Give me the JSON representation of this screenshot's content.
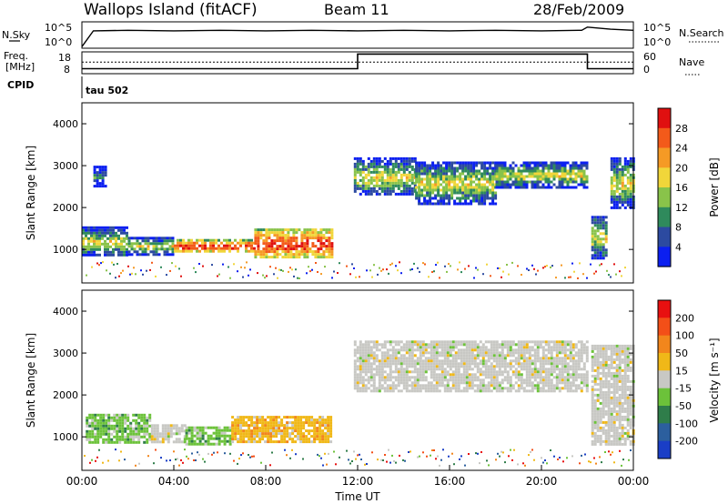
{
  "header": {
    "station": "Wallops Island (fitACF)",
    "beam": "Beam 11",
    "date": "28/Feb/2009"
  },
  "top_panel": {
    "left_label": "N.Sky",
    "right_label": "N.Search",
    "left_ticks": [
      "10^5",
      "10^0"
    ],
    "right_ticks": [
      "10^5",
      "10^0"
    ]
  },
  "freq_panel": {
    "left_label_1": "Freq.",
    "left_label_2": "[MHz]",
    "right_label": "Nave",
    "left_ticks": [
      "18",
      "8"
    ],
    "right_ticks": [
      "60",
      "0"
    ]
  },
  "cpid_panel": {
    "label": "CPID",
    "program": "tau 502"
  },
  "chart_data": [
    {
      "type": "line",
      "title": "N.Sky / N.Search",
      "xlim": [
        "00:00",
        "24:00"
      ],
      "ylim_log10": [
        0,
        5
      ],
      "series": [
        {
          "name": "N.Sky",
          "style": "solid",
          "x": [
            "00:00",
            "00:30",
            "02:00",
            "04:00",
            "06:00",
            "08:00",
            "10:00",
            "12:00",
            "14:00",
            "16:00",
            "18:00",
            "20:00",
            "21:45",
            "22:00",
            "23:00",
            "24:00"
          ],
          "y_log10": [
            0.3,
            3.3,
            3.4,
            3.3,
            3.4,
            3.3,
            3.4,
            3.3,
            3.4,
            3.3,
            3.4,
            3.3,
            3.4,
            4.0,
            3.6,
            3.4
          ]
        }
      ]
    },
    {
      "type": "line",
      "title": "Freq. / Nave",
      "xlim": [
        "00:00",
        "24:00"
      ],
      "ylim": [
        8,
        18
      ],
      "series": [
        {
          "name": "Freq.",
          "style": "solid",
          "x": [
            "00:00",
            "12:00",
            "12:00",
            "22:00",
            "22:00",
            "24:00"
          ],
          "y": [
            10.3,
            10.3,
            17,
            17,
            10.3,
            10.3
          ]
        },
        {
          "name": "Nave",
          "style": "dotted",
          "x": [
            "00:00",
            "24:00"
          ],
          "y": [
            13.3,
            13.3
          ]
        }
      ]
    },
    {
      "type": "heatmap",
      "title": "Power",
      "xlabel": "",
      "ylabel": "Slant Range [km]",
      "xlim": [
        "00:00",
        "24:00"
      ],
      "ylim": [
        200,
        4500
      ],
      "yticks": [
        1000,
        2000,
        3000,
        4000
      ],
      "colorbar": {
        "label": "Power [dB]",
        "ticks": [
          4,
          8,
          12,
          16,
          20,
          24,
          28
        ],
        "colors": [
          "#0b1ff0",
          "#2c4aa0",
          "#2f8a5c",
          "#89c34a",
          "#f1d63a",
          "#f59a25",
          "#f35a1a",
          "#e01010"
        ]
      },
      "regions": [
        {
          "from": "00:00",
          "to": "02:00",
          "range_km": [
            850,
            1550
          ],
          "level": "med"
        },
        {
          "from": "02:00",
          "to": "04:00",
          "range_km": [
            900,
            1300
          ],
          "level": "med"
        },
        {
          "from": "04:00",
          "to": "07:30",
          "range_km": [
            950,
            1250
          ],
          "level": "high"
        },
        {
          "from": "07:30",
          "to": "10:50",
          "range_km": [
            800,
            1500
          ],
          "level": "high"
        },
        {
          "from": "00:30",
          "to": "01:00",
          "range_km": [
            2500,
            3000
          ],
          "level": "low"
        },
        {
          "from": "11:50",
          "to": "14:30",
          "range_km": [
            2300,
            3200
          ],
          "level": "med"
        },
        {
          "from": "14:30",
          "to": "18:00",
          "range_km": [
            2100,
            3100
          ],
          "level": "med"
        },
        {
          "from": "18:00",
          "to": "22:00",
          "range_km": [
            2500,
            3100
          ],
          "level": "med"
        },
        {
          "from": "22:10",
          "to": "22:50",
          "range_km": [
            800,
            1800
          ],
          "level": "med"
        },
        {
          "from": "23:00",
          "to": "24:00",
          "range_km": [
            2000,
            3200
          ],
          "level": "med"
        }
      ]
    },
    {
      "type": "heatmap",
      "title": "Velocity",
      "xlabel": "Time UT",
      "ylabel": "Slant Range [km]",
      "xlim": [
        "00:00",
        "24:00"
      ],
      "ylim": [
        200,
        4500
      ],
      "yticks": [
        1000,
        2000,
        3000,
        4000
      ],
      "xticks": [
        "00:00",
        "04:00",
        "08:00",
        "12:00",
        "16:00",
        "20:00",
        "00:00"
      ],
      "colorbar": {
        "label": "Velocity [m s⁻¹]",
        "ticks": [
          200,
          100,
          50,
          15,
          -15,
          -50,
          -100,
          -200
        ],
        "colors": [
          "#1a3ec6",
          "#2c5f9e",
          "#2f7d4a",
          "#6cc23a",
          "#c8c8c4",
          "#f0b818",
          "#f2861c",
          "#f34f18",
          "#e81010"
        ]
      },
      "regions": [
        {
          "from": "00:10",
          "to": "03:00",
          "range_km": [
            850,
            1550
          ],
          "class": "green"
        },
        {
          "from": "03:00",
          "to": "04:30",
          "range_km": [
            850,
            1300
          ],
          "class": "gray"
        },
        {
          "from": "04:30",
          "to": "06:30",
          "range_km": [
            850,
            1250
          ],
          "class": "green"
        },
        {
          "from": "06:30",
          "to": "10:50",
          "range_km": [
            850,
            1500
          ],
          "class": "orange"
        },
        {
          "from": "11:50",
          "to": "22:00",
          "range_km": [
            2100,
            3300
          ],
          "class": "gray"
        },
        {
          "from": "22:10",
          "to": "24:00",
          "range_km": [
            800,
            3200
          ],
          "class": "gray"
        }
      ]
    }
  ]
}
